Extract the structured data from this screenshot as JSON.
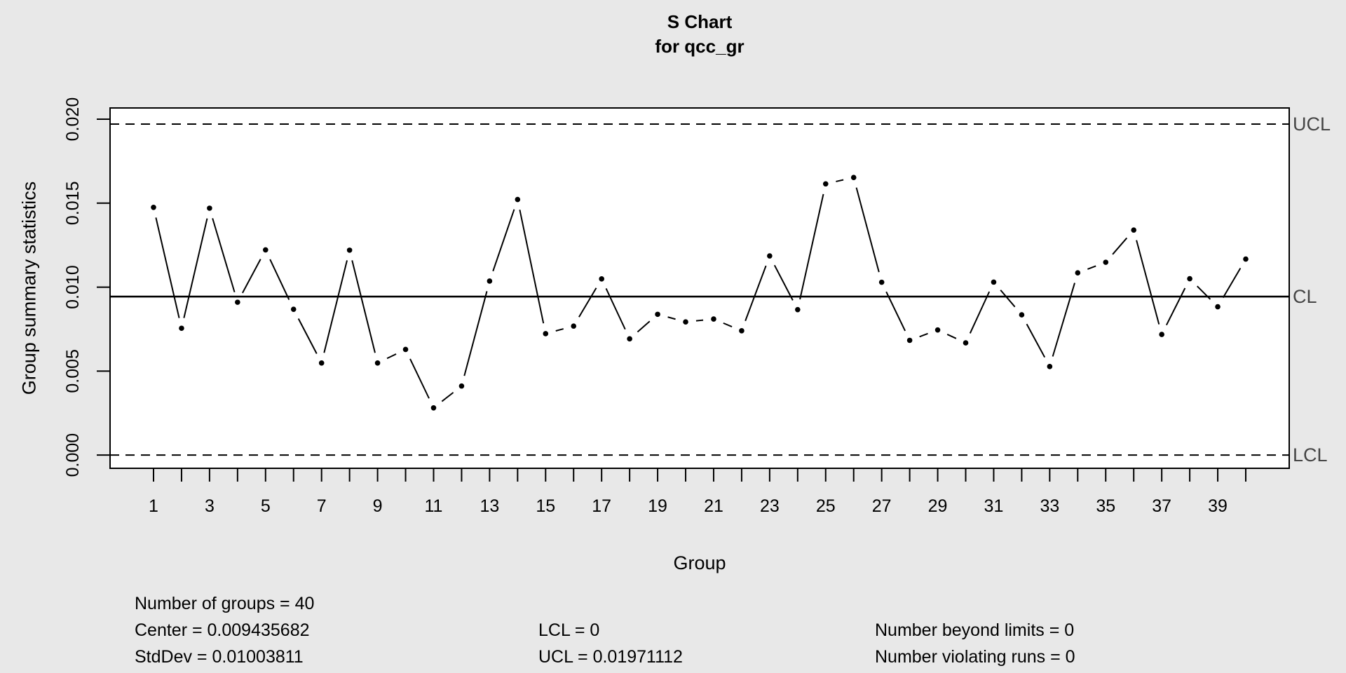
{
  "title": {
    "line1": "S Chart",
    "line2": "for qcc_gr"
  },
  "axes": {
    "x_label": "Group",
    "y_label": "Group summary statistics"
  },
  "chart_data": {
    "type": "line",
    "x": [
      1,
      2,
      3,
      4,
      5,
      6,
      7,
      8,
      9,
      10,
      11,
      12,
      13,
      14,
      15,
      16,
      17,
      18,
      19,
      20,
      21,
      22,
      23,
      24,
      25,
      26,
      27,
      28,
      29,
      30,
      31,
      32,
      33,
      34,
      35,
      36,
      37,
      38,
      39,
      40
    ],
    "values": [
      0.01475,
      0.00755,
      0.0147,
      0.0091,
      0.01222,
      0.00868,
      0.00548,
      0.0122,
      0.00548,
      0.00629,
      0.00281,
      0.00411,
      0.01036,
      0.01522,
      0.00723,
      0.00768,
      0.01049,
      0.00692,
      0.00838,
      0.00793,
      0.0081,
      0.0074,
      0.01186,
      0.00866,
      0.01615,
      0.01653,
      0.01029,
      0.00683,
      0.00745,
      0.00668,
      0.0103,
      0.00835,
      0.00527,
      0.01085,
      0.01148,
      0.0134,
      0.00718,
      0.0105,
      0.00883,
      0.01167
    ],
    "center": 0.009435682,
    "ucl": 0.01971112,
    "lcl": 0,
    "ylim": [
      -0.00079,
      0.02067
    ],
    "y_tick_values": [
      0,
      0.005,
      0.01,
      0.015,
      0.02
    ],
    "y_tick_labels": [
      "0.000",
      "0.005",
      "0.010",
      "0.015",
      "0.020"
    ],
    "x_label_positions": [
      1,
      3,
      5,
      7,
      9,
      11,
      13,
      15,
      17,
      19,
      21,
      23,
      25,
      27,
      29,
      31,
      33,
      35,
      37,
      39
    ],
    "x_label_texts": [
      "1",
      "3",
      "5",
      "7",
      "9",
      "11",
      "13",
      "15",
      "17",
      "19",
      "21",
      "23",
      "25",
      "27",
      "29",
      "31",
      "33",
      "35",
      "37",
      "39"
    ],
    "limit_labels": {
      "ucl": "UCL",
      "cl": "CL",
      "lcl": "LCL"
    },
    "legend_position": "none",
    "grid": false
  },
  "stats": {
    "col1": [
      "Number of groups = 40",
      "Center = 0.009435682",
      "StdDev = 0.01003811"
    ],
    "col2": [
      "LCL = 0",
      "UCL = 0.01971112"
    ],
    "col3": [
      "Number beyond limits = 0",
      "Number violating runs = 0"
    ]
  },
  "colors": {
    "background": "#e8e8e8",
    "plot_background": "#ffffff",
    "series": "#000000",
    "limit_label": "#454545"
  }
}
